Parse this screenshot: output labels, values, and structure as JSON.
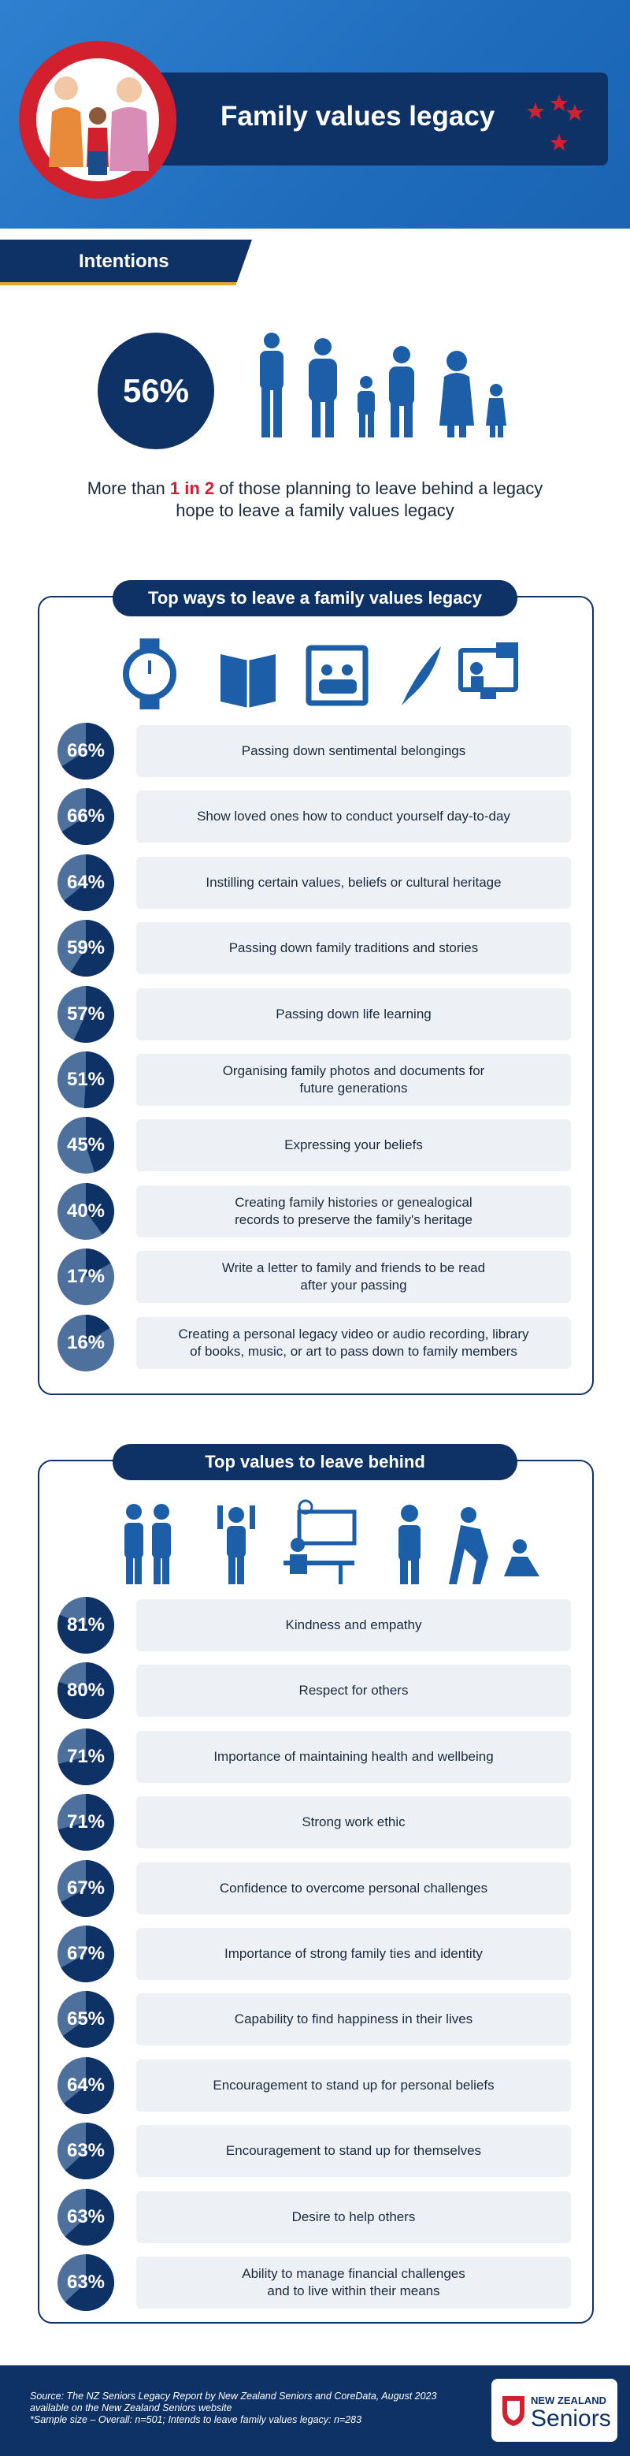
{
  "header": {
    "title": "Family values legacy"
  },
  "intentions": {
    "tab": "Intentions",
    "stat": {
      "value": 56,
      "label": "56%"
    },
    "text": {
      "before": "More than ",
      "highlight": "1 in 2",
      "after": " of those planning to leave behind a legacy",
      "line2": "hope to leave a family values legacy"
    }
  },
  "ways": {
    "title": "Top ways to leave a family values legacy",
    "items": [
      {
        "label": "Passing down sentimental belongings",
        "value": 66,
        "value_label": "66%"
      },
      {
        "label": "Show loved ones how to conduct yourself day-to-day",
        "value": 66,
        "value_label": "66%"
      },
      {
        "label": "Instilling certain values, beliefs or cultural heritage",
        "value": 64,
        "value_label": "64%"
      },
      {
        "label": "Passing down family traditions and stories",
        "value": 59,
        "value_label": "59%"
      },
      {
        "label": "Passing down life learning",
        "value": 57,
        "value_label": "57%"
      },
      {
        "label": "Organising family photos and documents for\nfuture generations",
        "value": 51,
        "value_label": "51%"
      },
      {
        "label": "Expressing your beliefs",
        "value": 45,
        "value_label": "45%"
      },
      {
        "label": "Creating family histories or genealogical\nrecords to preserve the family's heritage",
        "value": 40,
        "value_label": "40%"
      },
      {
        "label": "Write a letter to family and friends to be read\nafter your passing",
        "value": 17,
        "value_label": "17%"
      },
      {
        "label": "Creating a personal legacy video or audio recording, library\nof books, music, or art to pass down to family members",
        "value": 16,
        "value_label": "16%"
      }
    ]
  },
  "values": {
    "title": "Top values to leave behind",
    "items": [
      {
        "label": "Kindness and empathy",
        "value": 81,
        "value_label": "81%"
      },
      {
        "label": "Respect for others",
        "value": 80,
        "value_label": "80%"
      },
      {
        "label": "Importance of maintaining health and wellbeing",
        "value": 71,
        "value_label": "71%"
      },
      {
        "label": "Strong work ethic",
        "value": 71,
        "value_label": "71%"
      },
      {
        "label": "Confidence to overcome personal challenges",
        "value": 67,
        "value_label": "67%"
      },
      {
        "label": "Importance of strong family ties and identity",
        "value": 67,
        "value_label": "67%"
      },
      {
        "label": "Capability to find happiness in their lives",
        "value": 65,
        "value_label": "65%"
      },
      {
        "label": "Encouragement to stand up for personal beliefs",
        "value": 64,
        "value_label": "64%"
      },
      {
        "label": "Encouragement to stand up for themselves",
        "value": 63,
        "value_label": "63%"
      },
      {
        "label": "Desire to help others",
        "value": 63,
        "value_label": "63%"
      },
      {
        "label": "Ability to manage financial challenges\nand to live within their means",
        "value": 63,
        "value_label": "63%"
      }
    ]
  },
  "footer": {
    "source_lines": [
      "Source: The NZ Seniors Legacy Report by New Zealand Seniors and CoreData, August 2023",
      "available on the New Zealand Seniors website",
      "*Sample size – Overall: n=501; Intends to leave family values legacy: n=283"
    ],
    "logo_top": "NEW ZEALAND",
    "logo_bottom": "Seniors"
  }
}
